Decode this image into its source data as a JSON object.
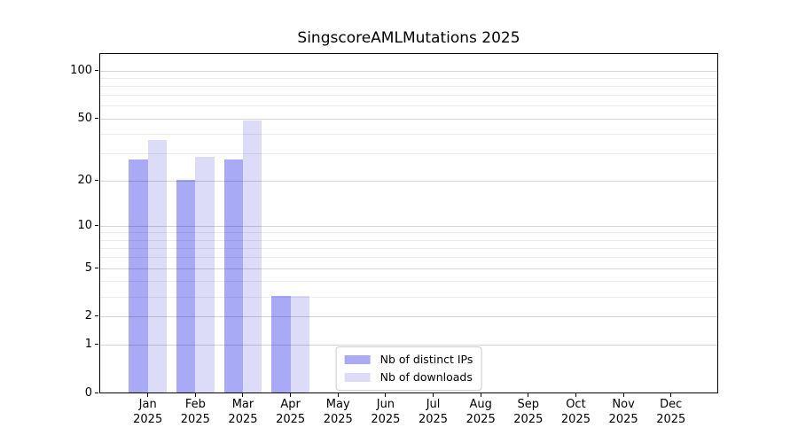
{
  "chart_data": {
    "type": "bar",
    "title": "SingscoreAMLMutations 2025",
    "scale": "log1p",
    "grid": true,
    "legend_position": "lower center",
    "categories": [
      {
        "month": "Jan",
        "year": "2025"
      },
      {
        "month": "Feb",
        "year": "2025"
      },
      {
        "month": "Mar",
        "year": "2025"
      },
      {
        "month": "Apr",
        "year": "2025"
      },
      {
        "month": "May",
        "year": "2025"
      },
      {
        "month": "Jun",
        "year": "2025"
      },
      {
        "month": "Jul",
        "year": "2025"
      },
      {
        "month": "Aug",
        "year": "2025"
      },
      {
        "month": "Sep",
        "year": "2025"
      },
      {
        "month": "Oct",
        "year": "2025"
      },
      {
        "month": "Nov",
        "year": "2025"
      },
      {
        "month": "Dec",
        "year": "2025"
      }
    ],
    "series": [
      {
        "name": "Nb of distinct IPs",
        "color": "#a9aaf6",
        "values": [
          27,
          20,
          27,
          3,
          0,
          0,
          0,
          0,
          0,
          0,
          0,
          0
        ]
      },
      {
        "name": "Nb of downloads",
        "color": "#dcdcf9",
        "values": [
          36,
          28,
          48,
          3,
          0,
          0,
          0,
          0,
          0,
          0,
          0,
          0
        ]
      }
    ],
    "y_ticks": [
      0,
      1,
      2,
      5,
      10,
      20,
      50,
      100
    ],
    "y_minor_gridlines": [
      3,
      4,
      6,
      7,
      8,
      9,
      30,
      40,
      60,
      70,
      80,
      90
    ],
    "ylim": [
      0,
      127
    ]
  },
  "colors": {
    "frame": "#000000",
    "major_grid": "rgba(0,0,0,0.17)",
    "minor_grid": "rgba(0,0,0,0.08)",
    "background": "#ffffff",
    "legend_border": "#cccccc"
  }
}
